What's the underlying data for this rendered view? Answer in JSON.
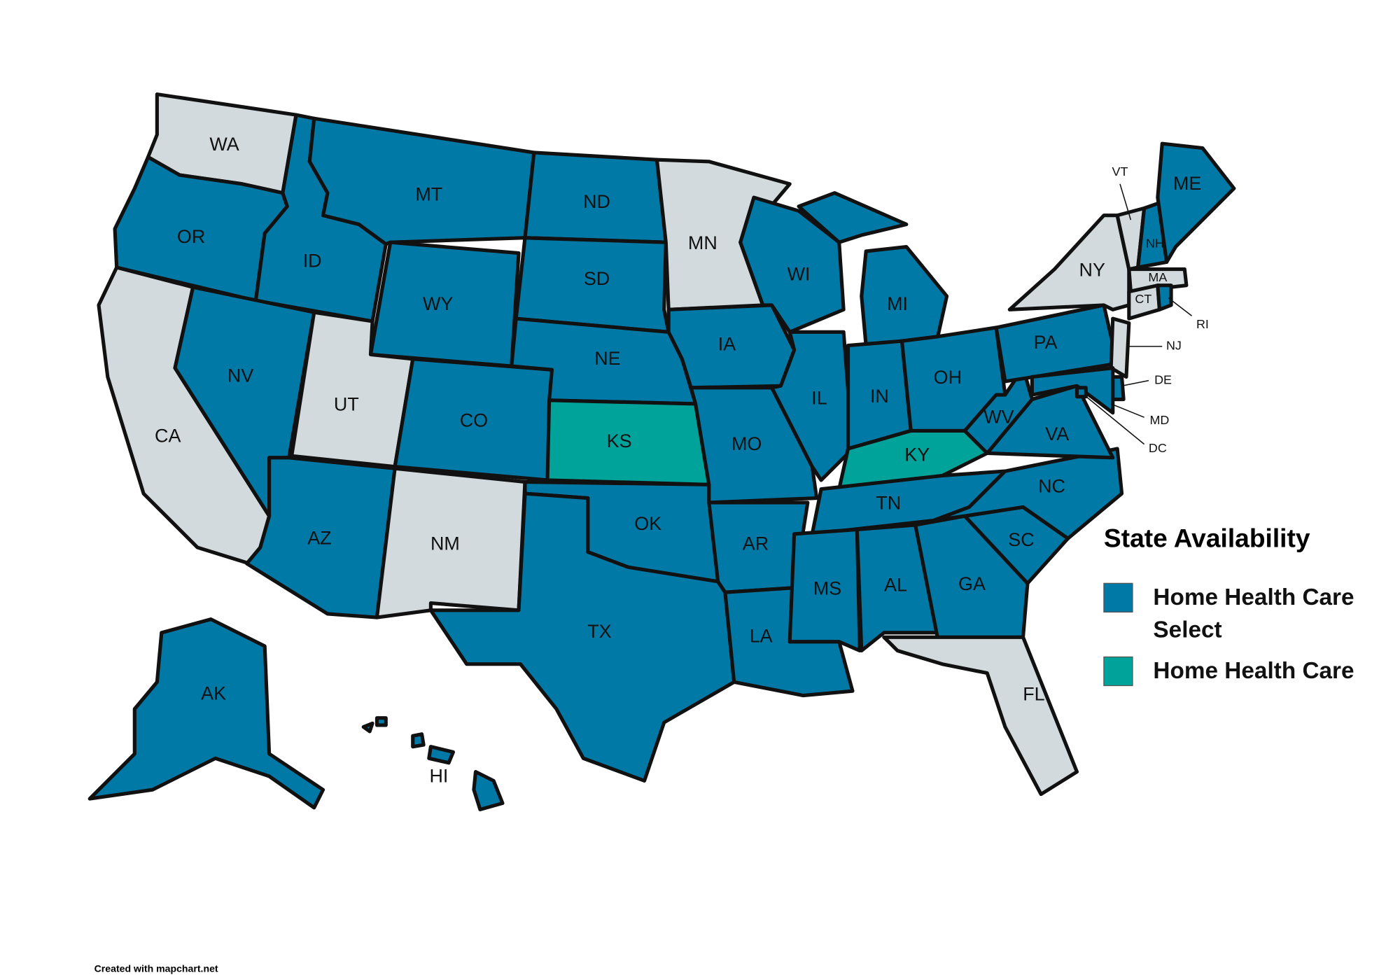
{
  "legend": {
    "title": "State Availability",
    "items": [
      {
        "label": "Home Health Care Select",
        "color": "#0079a6"
      },
      {
        "label": "Home Health Care",
        "color": "#00a39a"
      }
    ]
  },
  "unavailable_color": "#d3dadd",
  "states": [
    {
      "label": "WA",
      "color": "#d3dadd"
    },
    {
      "label": "OR",
      "color": "#0079a6"
    },
    {
      "label": "CA",
      "color": "#d3dadd"
    },
    {
      "label": "ID",
      "color": "#0079a6"
    },
    {
      "label": "NV",
      "color": "#0079a6"
    },
    {
      "label": "MT",
      "color": "#0079a6"
    },
    {
      "label": "WY",
      "color": "#0079a6"
    },
    {
      "label": "UT",
      "color": "#d3dadd"
    },
    {
      "label": "CO",
      "color": "#0079a6"
    },
    {
      "label": "AZ",
      "color": "#0079a6"
    },
    {
      "label": "NM",
      "color": "#d3dadd"
    },
    {
      "label": "ND",
      "color": "#0079a6"
    },
    {
      "label": "SD",
      "color": "#0079a6"
    },
    {
      "label": "NE",
      "color": "#0079a6"
    },
    {
      "label": "KS",
      "color": "#00a39a"
    },
    {
      "label": "OK",
      "color": "#0079a6"
    },
    {
      "label": "TX",
      "color": "#0079a6"
    },
    {
      "label": "MN",
      "color": "#d3dadd"
    },
    {
      "label": "IA",
      "color": "#0079a6"
    },
    {
      "label": "MO",
      "color": "#0079a6"
    },
    {
      "label": "AR",
      "color": "#0079a6"
    },
    {
      "label": "LA",
      "color": "#0079a6"
    },
    {
      "label": "WI",
      "color": "#0079a6"
    },
    {
      "label": "IL",
      "color": "#0079a6"
    },
    {
      "label": "MI",
      "color": "#0079a6"
    },
    {
      "label": "IN",
      "color": "#0079a6"
    },
    {
      "label": "OH",
      "color": "#0079a6"
    },
    {
      "label": "KY",
      "color": "#00a39a"
    },
    {
      "label": "TN",
      "color": "#0079a6"
    },
    {
      "label": "MS",
      "color": "#0079a6"
    },
    {
      "label": "AL",
      "color": "#0079a6"
    },
    {
      "label": "GA",
      "color": "#0079a6"
    },
    {
      "label": "FL",
      "color": "#d3dadd"
    },
    {
      "label": "SC",
      "color": "#0079a6"
    },
    {
      "label": "NC",
      "color": "#0079a6"
    },
    {
      "label": "VA",
      "color": "#0079a6"
    },
    {
      "label": "WV",
      "color": "#0079a6"
    },
    {
      "label": "PA",
      "color": "#0079a6"
    },
    {
      "label": "NY",
      "color": "#d3dadd"
    },
    {
      "label": "VT",
      "color": "#d3dadd"
    },
    {
      "label": "NH",
      "color": "#0079a6"
    },
    {
      "label": "ME",
      "color": "#0079a6"
    },
    {
      "label": "MA",
      "color": "#d3dadd"
    },
    {
      "label": "CT",
      "color": "#d3dadd"
    },
    {
      "label": "RI",
      "color": "#0079a6"
    },
    {
      "label": "NJ",
      "color": "#d3dadd"
    },
    {
      "label": "DE",
      "color": "#0079a6"
    },
    {
      "label": "MD",
      "color": "#0079a6"
    },
    {
      "label": "DC",
      "color": "#0079a6"
    },
    {
      "label": "AK",
      "color": "#0079a6"
    },
    {
      "label": "HI",
      "color": "#0079a6"
    }
  ],
  "footer": "Created with mapchart.net"
}
